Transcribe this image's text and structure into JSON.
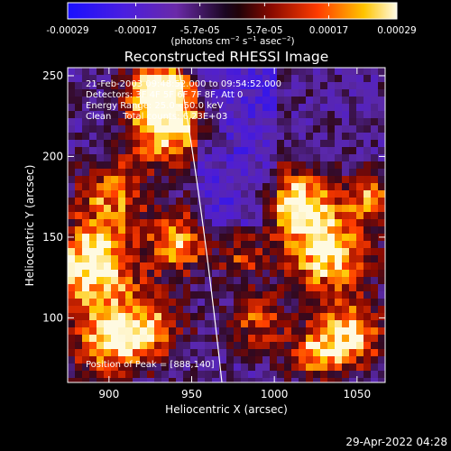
{
  "colorbar": {
    "tick_labels": [
      "-0.00029",
      "-0.00017",
      "-5.7e-05",
      "5.7e-05",
      "0.00017",
      "0.00029"
    ],
    "tick_values": [
      -0.00029,
      -0.00017,
      -5.7e-05,
      5.7e-05,
      0.00017,
      0.00029
    ],
    "range": [
      -0.00029,
      0.00029
    ],
    "units": {
      "prefix": "(photons cm",
      "sup1": "−2",
      "mid1": " s",
      "sup2": "−1",
      "mid2": " asec",
      "sup3": "−2",
      "suffix": ")"
    },
    "colors": [
      "#1a10ff",
      "#5a1fd0",
      "#2b0a3a",
      "#7a0000",
      "#ff3b00",
      "#ffd800",
      "#fffbe6"
    ]
  },
  "plot": {
    "title": "Reconstructed RHESSI Image",
    "xlabel": "Heliocentric X (arcsec)",
    "ylabel": "Heliocentric Y (arcsec)",
    "xlim": [
      875,
      1067
    ],
    "ylim": [
      60,
      255
    ],
    "xticks": [
      900,
      950,
      1000,
      1050
    ],
    "yticks": [
      100,
      150,
      200,
      250
    ],
    "info_lines": [
      "21-Feb-2003 09:48:52.000  to 09:54:52.000",
      "Detectors: 3F 4F 5F 6F 7F 8F, Att 0",
      "Energy Range: 25.0 - 50.0 keV",
      "Clean    Total counts: 6.23E+03"
    ],
    "peak_label": "Position of Peak = [888,140]",
    "limb_color": "#ffffff"
  },
  "footer": {
    "timestamp": "29-Apr-2022 04:28"
  }
}
